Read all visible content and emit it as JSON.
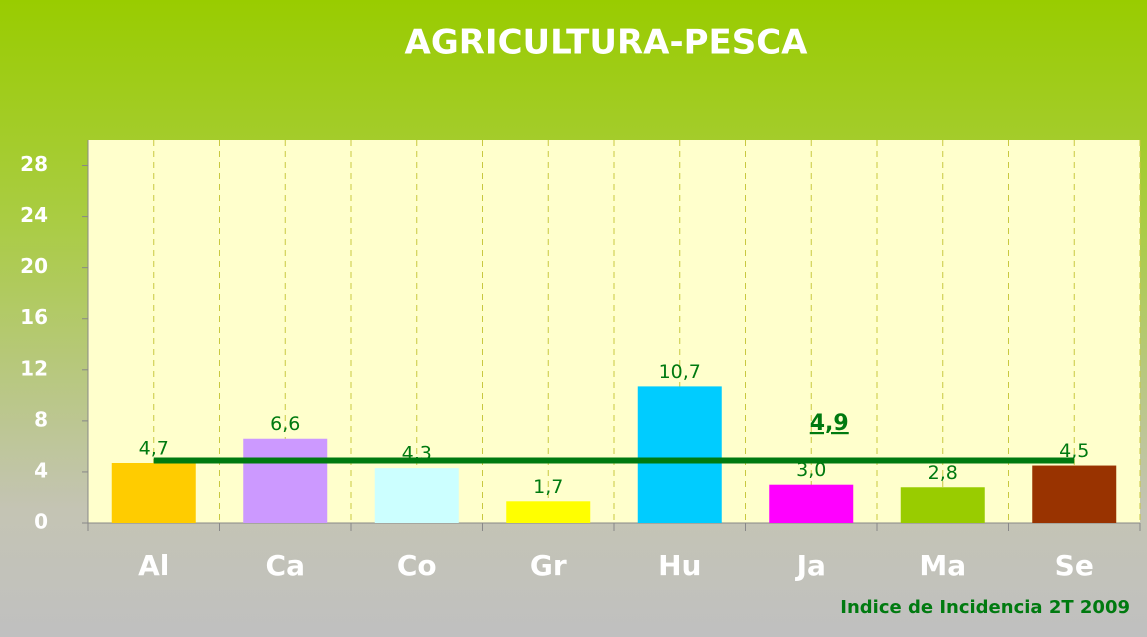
{
  "chart_data": {
    "type": "bar",
    "title": "AGRICULTURA-PESCA",
    "categories": [
      "Al",
      "Ca",
      "Co",
      "Gr",
      "Hu",
      "Ja",
      "Ma",
      "Se"
    ],
    "values": [
      4.7,
      6.6,
      4.3,
      1.7,
      10.7,
      3.0,
      2.8,
      4.5
    ],
    "value_labels": [
      "4,7",
      "6,6",
      "4,3",
      "1,7",
      "10,7",
      "3,0",
      "2,8",
      "4,5"
    ],
    "colors": [
      "#ffcc00",
      "#cc99ff",
      "#ccffff",
      "#ffff00",
      "#00ccff",
      "#ff00ff",
      "#99cc00",
      "#993300"
    ],
    "average": {
      "value": 4.9,
      "label": "4,9",
      "color": "#007a10"
    },
    "ylim": [
      0,
      30
    ],
    "yticks": [
      0,
      4,
      8,
      12,
      16,
      20,
      24,
      28
    ],
    "grid": "vertical",
    "footnote": "Indice de Incidencia 2T 2009"
  }
}
